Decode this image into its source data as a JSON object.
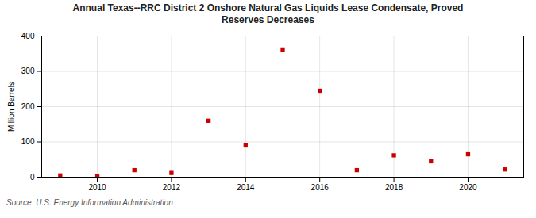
{
  "chart_data": {
    "type": "scatter",
    "title": "Annual Texas--RRC District 2 Onshore Natural Gas Liquids Lease Condensate, Proved\nReserves Decreases",
    "ylabel": "Million Barrels",
    "source": "Source: U.S. Energy Information Administration",
    "x": [
      2009,
      2010,
      2011,
      2012,
      2013,
      2014,
      2015,
      2016,
      2017,
      2018,
      2019,
      2020,
      2021
    ],
    "values": [
      5,
      3,
      20,
      12,
      160,
      90,
      362,
      245,
      20,
      62,
      45,
      65,
      22
    ],
    "color": "#cc0000",
    "marker": "square",
    "xlim": [
      2008.5,
      2021.5
    ],
    "xticks": [
      2010,
      2012,
      2014,
      2016,
      2018,
      2020
    ],
    "ylim": [
      0,
      400
    ],
    "yticks": [
      0,
      100,
      200,
      300,
      400
    ],
    "grid": true
  }
}
